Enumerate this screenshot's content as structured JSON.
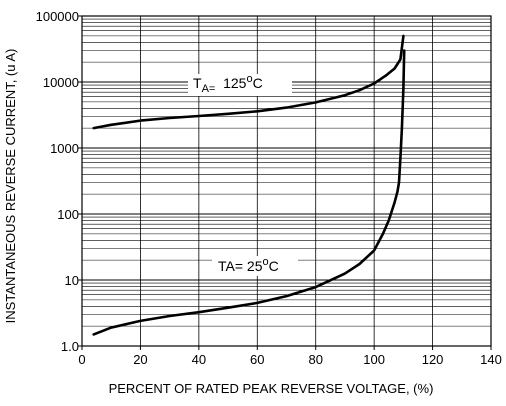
{
  "chart_data": {
    "type": "line",
    "title": "",
    "xlabel": "PERCENT OF RATED PEAK REVERSE VOLTAGE, (%)",
    "ylabel": "INSTANTANEOUS REVERSE CURRENT, (u A)",
    "xlim": [
      0,
      140
    ],
    "ylim": [
      1.0,
      100000
    ],
    "yscale": "log",
    "grid": true,
    "x_ticks": [
      0,
      20,
      40,
      60,
      80,
      100,
      120,
      140
    ],
    "x_tick_labels": [
      "0",
      "20",
      "40",
      "60",
      "80",
      "100",
      "120",
      "140"
    ],
    "y_ticks": [
      1,
      10,
      100,
      1000,
      10000,
      100000
    ],
    "y_tick_labels": [
      "1.0",
      "10",
      "100",
      "1000",
      "10000",
      "100000"
    ],
    "series": [
      {
        "key": "t125",
        "annotation": {
          "prefix": "T",
          "sub": "A=",
          "value": "125",
          "deg": "o",
          "unit": "C"
        },
        "x": [
          4,
          10,
          20,
          30,
          40,
          50,
          60,
          70,
          80,
          90,
          95,
          100,
          104,
          107,
          109,
          110
        ],
        "y": [
          2000,
          2250,
          2600,
          2850,
          3050,
          3300,
          3600,
          4100,
          4900,
          6300,
          7500,
          9500,
          12500,
          16000,
          22000,
          50000
        ]
      },
      {
        "key": "t25",
        "annotation": {
          "prefix": "TA= 25",
          "deg": "o",
          "unit": "C"
        },
        "x": [
          4,
          10,
          20,
          30,
          40,
          50,
          60,
          70,
          80,
          90,
          95,
          100,
          103,
          105,
          107,
          108,
          108.5,
          109,
          109.5,
          110,
          110.3
        ],
        "y": [
          1.5,
          1.9,
          2.4,
          2.85,
          3.25,
          3.8,
          4.5,
          5.7,
          7.8,
          12.5,
          17.5,
          28,
          50,
          80,
          150,
          220,
          300,
          700,
          2000,
          8000,
          30000
        ]
      }
    ]
  }
}
